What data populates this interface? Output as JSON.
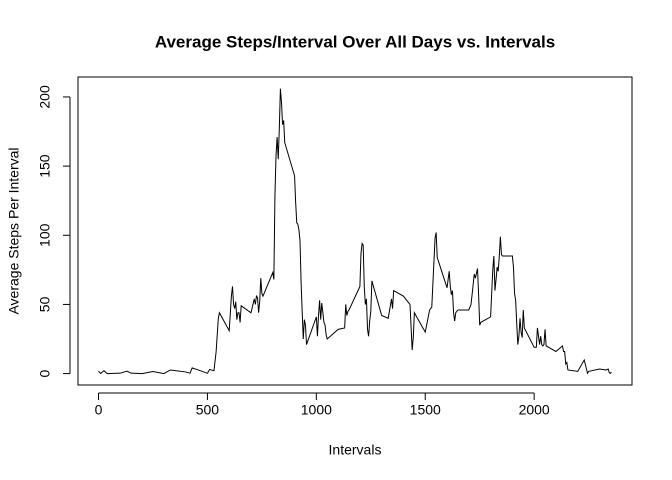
{
  "chart_data": {
    "type": "line",
    "title": "Average Steps/Interval Over All Days vs. Intervals",
    "x_label": "Intervals",
    "y_label": "Average Steps Per Interval",
    "color": "#000000",
    "xlim": [
      -94.2,
      2449.2
    ],
    "ylim": [
      -8.25,
      214.42
    ],
    "xticks": [
      0,
      500,
      1000,
      1500,
      2000
    ],
    "yticks": [
      0,
      50,
      100,
      150,
      200
    ],
    "grid": false,
    "x": [
      0,
      10,
      25,
      40,
      55,
      100,
      130,
      150,
      200,
      250,
      300,
      330,
      400,
      420,
      430,
      440,
      450,
      500,
      510,
      530,
      540,
      550,
      555,
      600,
      610,
      615,
      620,
      625,
      630,
      635,
      640,
      645,
      650,
      655,
      700,
      715,
      720,
      725,
      730,
      735,
      740,
      745,
      750,
      755,
      800,
      805,
      810,
      815,
      820,
      825,
      830,
      835,
      840,
      845,
      850,
      855,
      900,
      905,
      910,
      915,
      920,
      925,
      930,
      935,
      940,
      945,
      950,
      955,
      1000,
      1005,
      1010,
      1015,
      1020,
      1025,
      1030,
      1035,
      1040,
      1045,
      1050,
      1100,
      1130,
      1135,
      1140,
      1145,
      1150,
      1200,
      1205,
      1210,
      1215,
      1220,
      1225,
      1230,
      1235,
      1240,
      1245,
      1250,
      1255,
      1300,
      1330,
      1345,
      1350,
      1355,
      1400,
      1430,
      1440,
      1445,
      1450,
      1500,
      1520,
      1530,
      1545,
      1550,
      1555,
      1600,
      1610,
      1615,
      1620,
      1625,
      1630,
      1635,
      1640,
      1650,
      1700,
      1710,
      1715,
      1725,
      1730,
      1740,
      1745,
      1750,
      1755,
      1800,
      1810,
      1815,
      1820,
      1825,
      1830,
      1835,
      1840,
      1845,
      1850,
      1855,
      1900,
      1905,
      1910,
      1915,
      1920,
      1925,
      1930,
      1935,
      1940,
      1945,
      1950,
      1955,
      2000,
      2005,
      2010,
      2015,
      2020,
      2025,
      2030,
      2035,
      2040,
      2045,
      2050,
      2055,
      2100,
      2130,
      2135,
      2140,
      2145,
      2150,
      2155,
      2200,
      2230,
      2245,
      2250,
      2300,
      2330,
      2340,
      2345,
      2350,
      2355
    ],
    "values": [
      1.7,
      0.1,
      2.1,
      0,
      0.1,
      0.3,
      1.8,
      0.3,
      0,
      1.5,
      0,
      2.6,
      1.2,
      0.3,
      4.1,
      3.5,
      3.1,
      0.2,
      3.0,
      2.1,
      16,
      40,
      44,
      31,
      56,
      63,
      50,
      47,
      52,
      39,
      44,
      44,
      37,
      49,
      44,
      54,
      50,
      56,
      55,
      44,
      52,
      69,
      58,
      56,
      73,
      68,
      129,
      158,
      171,
      155,
      177,
      206,
      196,
      180,
      183,
      167,
      143,
      124,
      109,
      108,
      104,
      96,
      66,
      45,
      25,
      39,
      35,
      21,
      41,
      27,
      42,
      53,
      39,
      51,
      44,
      37,
      35,
      28,
      25,
      32,
      33,
      50,
      42,
      45,
      46,
      63,
      87,
      94,
      93,
      63,
      50,
      54,
      32,
      27,
      38,
      45,
      67,
      42,
      40,
      54,
      47,
      60,
      56,
      50,
      17,
      26,
      44,
      30,
      46,
      48,
      98,
      102,
      84,
      62,
      74,
      63,
      57,
      60,
      44,
      38,
      44,
      46,
      46,
      50,
      57,
      72,
      69,
      76,
      57,
      35,
      37,
      41,
      75,
      85,
      60,
      68,
      77,
      74,
      85,
      99,
      86,
      85,
      85,
      77,
      58,
      53,
      36,
      21,
      27,
      40,
      30,
      26,
      46,
      33,
      19,
      19,
      19,
      33,
      27,
      21,
      27,
      21,
      20,
      21,
      32,
      20,
      16,
      20,
      16,
      16,
      7,
      8,
      2.6,
      1.6,
      9.8,
      0.2,
      1.6,
      3.3,
      2.6,
      3.3,
      0.7,
      0.2,
      1.1
    ]
  }
}
